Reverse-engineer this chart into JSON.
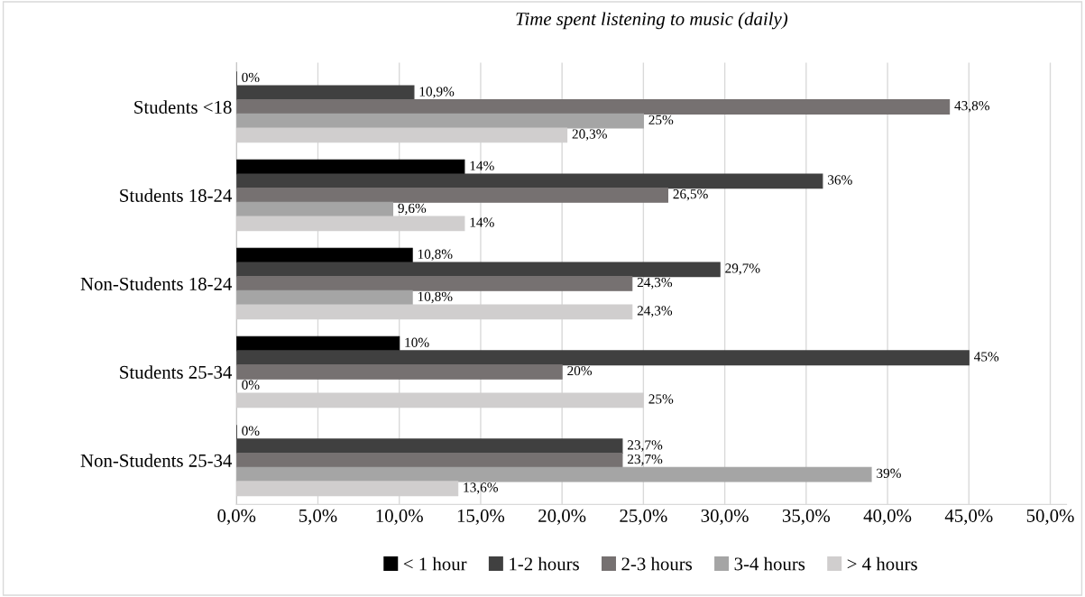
{
  "chart_data": {
    "type": "bar",
    "orientation": "horizontal",
    "title": "Time spent listening to music (daily)",
    "categories": [
      "Students <18",
      "Students 18-24",
      "Non-Students 18-24",
      "Students 25-34",
      "Non-Students 25-34"
    ],
    "series": [
      {
        "name": "< 1 hour",
        "color": "#000000",
        "values": [
          0,
          14,
          10.8,
          10,
          0
        ],
        "value_labels": [
          "0%",
          "14%",
          "10,8%",
          "10%",
          "0%"
        ]
      },
      {
        "name": "1-2 hours",
        "color": "#404040",
        "values": [
          10.9,
          36,
          29.7,
          45,
          23.7
        ],
        "value_labels": [
          "10,9%",
          "36%",
          "29,7%",
          "45%",
          "23,7%"
        ]
      },
      {
        "name": "2-3 hours",
        "color": "#767171",
        "values": [
          43.8,
          26.5,
          24.3,
          20,
          23.7
        ],
        "value_labels": [
          "43,8%",
          "26,5%",
          "24,3%",
          "20%",
          "23,7%"
        ]
      },
      {
        "name": "3-4 hours",
        "color": "#a5a5a5",
        "values": [
          25,
          9.6,
          10.8,
          0,
          39
        ],
        "value_labels": [
          "25%",
          "9,6%",
          "10,8%",
          "0%",
          "39%"
        ]
      },
      {
        "name": "> 4 hours",
        "color": "#d0cece",
        "values": [
          20.3,
          14,
          24.3,
          25,
          13.6
        ],
        "value_labels": [
          "20,3%",
          "14%",
          "24,3%",
          "25%",
          "13,6%"
        ]
      }
    ],
    "xlim": [
      0,
      51
    ],
    "xticks": [
      {
        "value": 0,
        "label": "0,0%"
      },
      {
        "value": 5,
        "label": "5,0%"
      },
      {
        "value": 10,
        "label": "10,0%"
      },
      {
        "value": 15,
        "label": "15,0%"
      },
      {
        "value": 20,
        "label": "20,0%"
      },
      {
        "value": 25,
        "label": "25,0%"
      },
      {
        "value": 30,
        "label": "30,0%"
      },
      {
        "value": 35,
        "label": "35,0%"
      },
      {
        "value": 40,
        "label": "40,0%"
      },
      {
        "value": 45,
        "label": "45,0%"
      },
      {
        "value": 50,
        "label": "50,0%"
      }
    ],
    "grid": "x",
    "legend": "bottom"
  }
}
